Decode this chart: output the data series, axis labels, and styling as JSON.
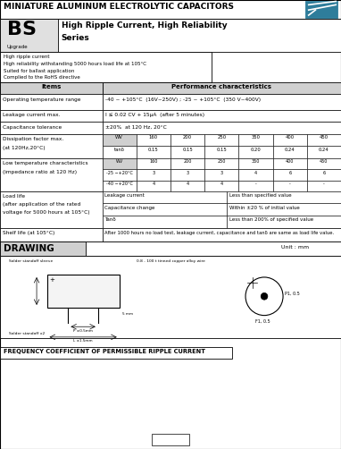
{
  "title": "MINIATURE ALUMINUM ELECTROLYTIC CAPACITORS",
  "series_code": "BS",
  "series_sub": "Upgrade",
  "series_title": "High Ripple Current, High Reliability\nSeries",
  "features": [
    "High ripple current",
    "High reliability withstanding 5000 hours load life at 105°C",
    "Suited for ballast application",
    "Complied to the RoHS directive"
  ],
  "table_header_items": "Items",
  "table_header_perf": "Performance characteristics",
  "rows": [
    {
      "item": "Operating temperature range",
      "value": "-40 ~ +105°C  (16V~250V) ; -25 ~ +105°C  (350 V~400V)"
    },
    {
      "item": "Leakage current max.",
      "value": "I ≤ 0.02 CV + 15μA  (after 5 minutes)"
    },
    {
      "item": "Capacitance tolerance",
      "value": "±20%  at 120 Hz, 20°C"
    },
    {
      "item": "Dissipation factor max.\n(at 120Hz,20°C)",
      "value": "dissipation_table"
    },
    {
      "item": "Low temperature characteristics\n(impedance ratio at 120 Hz)",
      "value": "low_temp_table"
    },
    {
      "item": "Load life\n(after application of the rated\nvoltage for 5000 hours at 105°C)",
      "value": "load_life_table"
    },
    {
      "item": "Shelf life (at 105°C)",
      "value": "After 1000 hours no load test, leakage current, capacitance and tanδ are same as load life value."
    }
  ],
  "dissipation_wv": [
    "WV",
    "160",
    "200",
    "250",
    "350",
    "400",
    "450"
  ],
  "dissipation_tan": [
    "tanδ",
    "0.15",
    "0.15",
    "0.15",
    "0.20",
    "0.24",
    "0.24"
  ],
  "low_temp_wv": [
    "WV",
    "160",
    "200",
    "250",
    "350",
    "400",
    "450"
  ],
  "low_temp_r1": [
    "-25 ∼+20°C",
    "3",
    "3",
    "3",
    "4",
    "6",
    "6"
  ],
  "low_temp_r2": [
    "-40 ∼+20°C",
    "4",
    "4",
    "4",
    "-",
    "-",
    "-"
  ],
  "load_life_rows": [
    [
      "Leakage current",
      "Less than specified value"
    ],
    [
      "Capacitance change",
      "Within ±20 % of initial value"
    ],
    [
      "Tanδ",
      "Less than 200% of specified value"
    ]
  ],
  "drawing_title": "DRAWING",
  "drawing_unit": "Unit : mm",
  "freq_coeff_title": "FREQUENCY COEFFICIENT OF PERMISSIBLE RIPPLE CURRENT",
  "bg_color": "#000000",
  "paper_color": "#ffffff",
  "gray_bg": "#d0d0d0",
  "logo_color": "#2e7d9b"
}
